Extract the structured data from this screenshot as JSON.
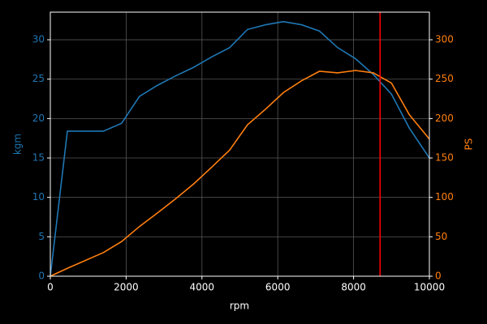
{
  "chart_data": {
    "type": "line",
    "x_label": "rpm",
    "y_label": "kgm",
    "y2_label": "PS",
    "x": [
      0,
      450,
      1400,
      1880,
      2350,
      2820,
      3300,
      3780,
      4250,
      4730,
      5200,
      5680,
      6150,
      6630,
      7100,
      7580,
      8050,
      8520,
      9000,
      9470,
      10000
    ],
    "series": [
      {
        "name": "kgm",
        "color": "#1f77b4",
        "axis": "y",
        "values": [
          0,
          18.4,
          18.4,
          19.4,
          22.8,
          24.2,
          25.4,
          26.5,
          27.8,
          29.0,
          31.3,
          31.9,
          32.3,
          31.9,
          31.1,
          29.0,
          27.6,
          25.6,
          23.1,
          18.8,
          15.0
        ]
      },
      {
        "name": "PS",
        "color": "#ff7f0e",
        "axis": "y2",
        "values": [
          0,
          10,
          30,
          44,
          63,
          80,
          98,
          117,
          138,
          160,
          192,
          212,
          233,
          248,
          260,
          258,
          261,
          258,
          245,
          205,
          174
        ]
      }
    ],
    "vline": {
      "value": 8700,
      "color": "#ff0000"
    },
    "xlim": [
      0,
      10000
    ],
    "xticks": [
      0,
      2000,
      4000,
      6000,
      8000,
      10000
    ],
    "ylim": [
      0,
      33.5
    ],
    "yticks": [
      0,
      5,
      10,
      15,
      20,
      25,
      30
    ],
    "y2lim": [
      0,
      335
    ],
    "y2ticks": [
      0,
      50,
      100,
      150,
      200,
      250,
      300
    ],
    "grid": true
  }
}
